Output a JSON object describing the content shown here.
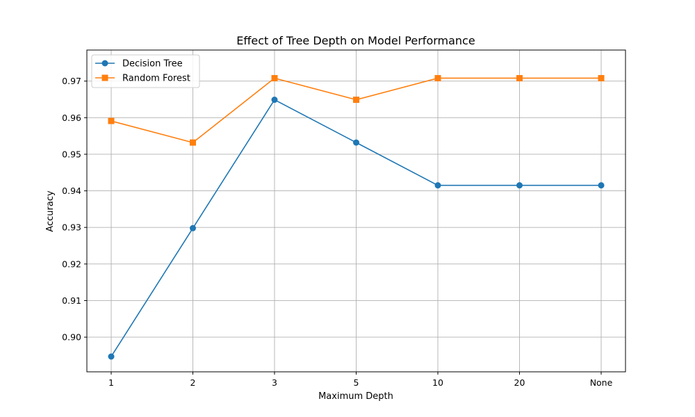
{
  "chart_data": {
    "type": "line",
    "title": "Effect of Tree Depth on Model Performance",
    "xlabel": "Maximum Depth",
    "ylabel": "Accuracy",
    "categories": [
      "1",
      "2",
      "3",
      "5",
      "10",
      "20",
      "None"
    ],
    "ylim": [
      0.8947,
      0.9745
    ],
    "yticks": [
      "0.90",
      "0.91",
      "0.92",
      "0.93",
      "0.94",
      "0.95",
      "0.96",
      "0.97"
    ],
    "grid": true,
    "legend": "top-left",
    "series": [
      {
        "name": "Decision Tree",
        "color": "#1f77b4",
        "marker": "circle",
        "values": [
          0.8947,
          0.9298,
          0.9649,
          0.9532,
          0.9415,
          0.9415,
          0.9415
        ]
      },
      {
        "name": "Random Forest",
        "color": "#ff7f0e",
        "marker": "square",
        "values": [
          0.9591,
          0.9532,
          0.9708,
          0.9649,
          0.9708,
          0.9708,
          0.9708
        ]
      }
    ]
  }
}
